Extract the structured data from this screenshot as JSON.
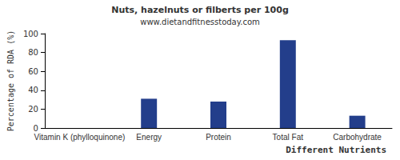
{
  "chart_data": {
    "type": "bar",
    "title": "Nuts, hazelnuts or filberts per 100g",
    "subtitle": "www.dietandfitnesstoday.com",
    "x_label": "Different Nutrients",
    "y_label": "Percentage of RDA (%)",
    "categories": [
      "Vitamin K (phylloquinone)",
      "Energy",
      "Protein",
      "Total Fat",
      "Carbohydrate"
    ],
    "values": [
      0,
      31,
      28,
      93,
      13
    ],
    "color": "#233e8b",
    "ylim": [
      0,
      100
    ],
    "yticks": [
      0,
      20,
      40,
      60,
      80,
      100
    ],
    "grid": false
  }
}
